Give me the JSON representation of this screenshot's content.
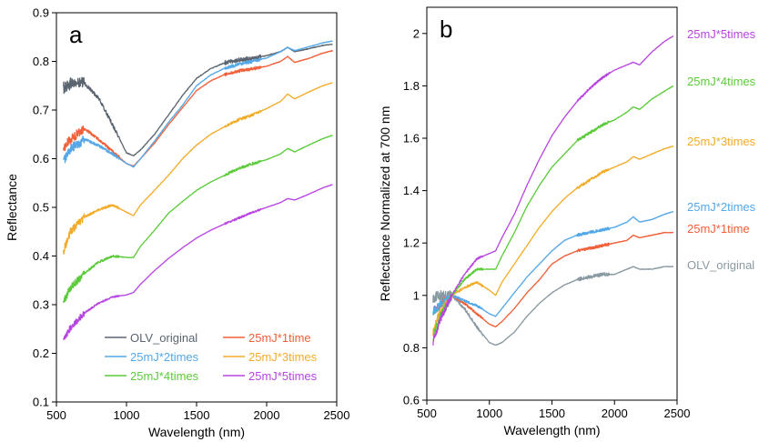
{
  "chart_data": [
    {
      "type": "line",
      "panel_label": "a",
      "xlabel": "Wavelength  (nm)",
      "ylabel": "Reflectance",
      "xlim": [
        500,
        2500
      ],
      "ylim": [
        0.1,
        0.9
      ],
      "xticks": [
        500,
        1000,
        1500,
        2000,
        2500
      ],
      "yticks": [
        0.1,
        0.2,
        0.3,
        0.4,
        0.5,
        0.6,
        0.7,
        0.8,
        0.9
      ],
      "ytick_labels": [
        "0.1",
        "0.2",
        "0.3",
        "0.4",
        "0.5",
        "0.6",
        "0.7",
        "0.8",
        "0.9"
      ],
      "legend": "bottom-left, two columns",
      "x": [
        550,
        600,
        700,
        800,
        900,
        1000,
        1050,
        1100,
        1200,
        1300,
        1400,
        1500,
        1600,
        1700,
        1800,
        1900,
        2000,
        2100,
        2150,
        2200,
        2300,
        2400,
        2470
      ],
      "series": [
        {
          "name": "OLV_original",
          "color": "#5a6570",
          "noise": 0.008,
          "values": [
            0.745,
            0.755,
            0.755,
            0.725,
            0.67,
            0.612,
            0.606,
            0.618,
            0.65,
            0.69,
            0.73,
            0.765,
            0.785,
            0.797,
            0.803,
            0.806,
            0.812,
            0.82,
            0.829,
            0.82,
            0.826,
            0.833,
            0.835
          ]
        },
        {
          "name": "25mJ*1time",
          "color": "#f0603a",
          "noise": 0.006,
          "values": [
            0.62,
            0.64,
            0.662,
            0.64,
            0.615,
            0.59,
            0.585,
            0.6,
            0.632,
            0.67,
            0.705,
            0.74,
            0.76,
            0.773,
            0.78,
            0.785,
            0.79,
            0.8,
            0.81,
            0.798,
            0.806,
            0.817,
            0.822
          ]
        },
        {
          "name": "25mJ*2times",
          "color": "#55a8e8",
          "noise": 0.006,
          "values": [
            0.595,
            0.62,
            0.64,
            0.627,
            0.61,
            0.59,
            0.583,
            0.6,
            0.636,
            0.675,
            0.71,
            0.75,
            0.772,
            0.786,
            0.794,
            0.8,
            0.807,
            0.82,
            0.829,
            0.822,
            0.83,
            0.838,
            0.842
          ]
        },
        {
          "name": "25mJ*3times",
          "color": "#f2ac2a",
          "noise": 0.005,
          "values": [
            0.41,
            0.45,
            0.48,
            0.495,
            0.505,
            0.49,
            0.483,
            0.505,
            0.535,
            0.566,
            0.6,
            0.628,
            0.65,
            0.666,
            0.68,
            0.69,
            0.703,
            0.718,
            0.733,
            0.723,
            0.737,
            0.75,
            0.756
          ]
        },
        {
          "name": "25mJ*4times",
          "color": "#5ccb3a",
          "noise": 0.005,
          "values": [
            0.305,
            0.335,
            0.365,
            0.387,
            0.4,
            0.397,
            0.397,
            0.42,
            0.453,
            0.488,
            0.512,
            0.535,
            0.552,
            0.566,
            0.58,
            0.59,
            0.598,
            0.61,
            0.621,
            0.614,
            0.628,
            0.641,
            0.648
          ]
        },
        {
          "name": "25mJ*5times",
          "color": "#b845e0",
          "noise": 0.004,
          "values": [
            0.225,
            0.253,
            0.283,
            0.303,
            0.316,
            0.32,
            0.325,
            0.342,
            0.37,
            0.395,
            0.417,
            0.437,
            0.453,
            0.466,
            0.478,
            0.49,
            0.5,
            0.51,
            0.518,
            0.515,
            0.527,
            0.54,
            0.547
          ]
        }
      ]
    },
    {
      "type": "line",
      "panel_label": "b",
      "xlabel": "Wavelength  (nm)",
      "ylabel": "Reflectance  Normalized at 700 nm",
      "xlim": [
        500,
        2500
      ],
      "ylim": [
        0.6,
        2.1
      ],
      "xticks": [
        500,
        1000,
        1500,
        2000,
        2500
      ],
      "yticks": [
        0.6,
        0.8,
        1.0,
        1.2,
        1.4,
        1.6,
        1.8,
        2.0
      ],
      "ytick_labels": [
        "0.6",
        "0.8",
        "1",
        "1.2",
        "1.4",
        "1.6",
        "1.8",
        "2"
      ],
      "legend": "right of plot, labels at line ends",
      "x": [
        550,
        600,
        700,
        800,
        900,
        1000,
        1050,
        1100,
        1200,
        1300,
        1400,
        1500,
        1600,
        1700,
        1800,
        1900,
        2000,
        2100,
        2150,
        2200,
        2300,
        2400,
        2470
      ],
      "series": [
        {
          "name": "OLV_original",
          "color": "#8a9aa3",
          "noise": 0.012,
          "values": [
            0.99,
            1.0,
            1.0,
            0.95,
            0.88,
            0.82,
            0.81,
            0.82,
            0.86,
            0.92,
            0.97,
            1.01,
            1.04,
            1.06,
            1.07,
            1.08,
            1.08,
            1.1,
            1.11,
            1.1,
            1.1,
            1.11,
            1.11
          ]
        },
        {
          "name": "25mJ*1time",
          "color": "#f0603a",
          "noise": 0.01,
          "values": [
            0.94,
            0.96,
            1.0,
            0.97,
            0.93,
            0.89,
            0.88,
            0.9,
            0.95,
            1.01,
            1.06,
            1.12,
            1.15,
            1.17,
            1.18,
            1.19,
            1.2,
            1.21,
            1.23,
            1.22,
            1.23,
            1.24,
            1.24
          ]
        },
        {
          "name": "25mJ*2times",
          "color": "#55a8e8",
          "noise": 0.01,
          "values": [
            0.94,
            0.96,
            1.0,
            0.98,
            0.96,
            0.93,
            0.92,
            0.95,
            1.01,
            1.07,
            1.12,
            1.17,
            1.21,
            1.23,
            1.24,
            1.25,
            1.26,
            1.28,
            1.3,
            1.28,
            1.29,
            1.31,
            1.32
          ]
        },
        {
          "name": "25mJ*3times",
          "color": "#f2ac2a",
          "noise": 0.01,
          "values": [
            0.86,
            0.93,
            1.0,
            1.03,
            1.05,
            1.02,
            1.0,
            1.05,
            1.12,
            1.19,
            1.26,
            1.32,
            1.37,
            1.41,
            1.44,
            1.47,
            1.49,
            1.51,
            1.53,
            1.52,
            1.54,
            1.56,
            1.57
          ]
        },
        {
          "name": "25mJ*4times",
          "color": "#5ccb3a",
          "noise": 0.01,
          "values": [
            0.84,
            0.91,
            1.0,
            1.06,
            1.1,
            1.1,
            1.1,
            1.15,
            1.24,
            1.34,
            1.42,
            1.49,
            1.54,
            1.59,
            1.62,
            1.65,
            1.67,
            1.7,
            1.72,
            1.71,
            1.75,
            1.78,
            1.8
          ]
        },
        {
          "name": "25mJ*5times",
          "color": "#b845e0",
          "noise": 0.008,
          "values": [
            0.82,
            0.9,
            1.0,
            1.08,
            1.14,
            1.16,
            1.17,
            1.22,
            1.31,
            1.42,
            1.52,
            1.61,
            1.68,
            1.74,
            1.79,
            1.83,
            1.86,
            1.88,
            1.89,
            1.88,
            1.93,
            1.97,
            1.99
          ]
        }
      ]
    }
  ]
}
